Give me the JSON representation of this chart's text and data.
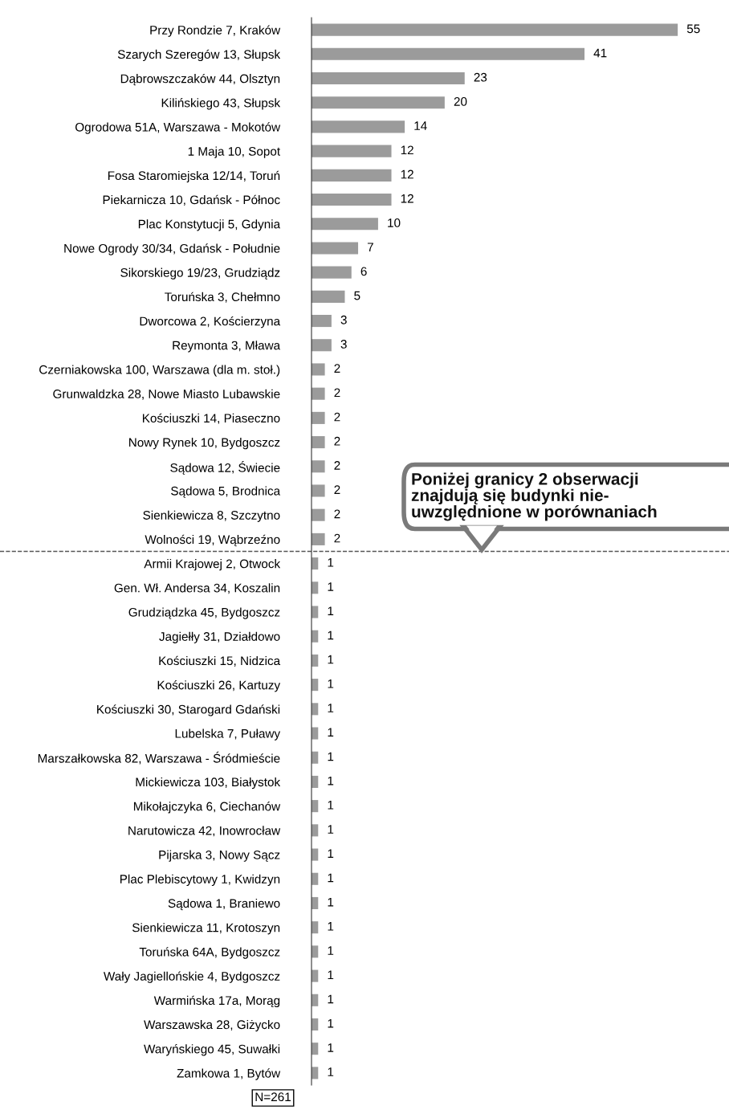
{
  "chart_data": {
    "type": "bar",
    "orientation": "horizontal",
    "data_labels": true,
    "grid": false,
    "categories": [
      "Przy Rondzie 7, Kraków",
      "Szarych Szeregów 13, Słupsk",
      "Dąbrowszczaków 44, Olsztyn",
      "Kilińskiego 43, Słupsk",
      "Ogrodowa 51A, Warszawa - Mokotów",
      "1 Maja 10, Sopot",
      "Fosa Staromiejska 12/14, Toruń",
      "Piekarnicza 10, Gdańsk - Północ",
      "Plac Konstytucji 5, Gdynia",
      "Nowe Ogrody 30/34, Gdańsk - Południe",
      "Sikorskiego 19/23, Grudziądz",
      "Toruńska 3, Chełmno",
      "Dworcowa 2, Kościerzyna",
      "Reymonta 3, Mława",
      "Czerniakowska 100, Warszawa (dla m. stoł.)",
      "Grunwaldzka 28, Nowe Miasto Lubawskie",
      "Kościuszki 14, Piaseczno",
      "Nowy Rynek 10, Bydgoszcz",
      "Sądowa 12, Świecie",
      "Sądowa 5, Brodnica",
      "Sienkiewicza 8, Szczytno",
      "Wolności 19, Wąbrzeźno",
      "Armii Krajowej 2, Otwock",
      "Gen. Wł. Andersa 34, Koszalin",
      "Grudziądzka 45, Bydgoszcz",
      "Jagiełły 31, Działdowo",
      "Kościuszki 15, Nidzica",
      "Kościuszki 26, Kartuzy",
      "Kościuszki 30, Starogard Gdański",
      "Lubelska 7, Puławy",
      "Marszałkowska 82, Warszawa - Śródmieście",
      "Mickiewicza 103, Białystok",
      "Mikołajczyka 6, Ciechanów",
      "Narutowicza 42, Inowrocław",
      "Pijarska 3, Nowy Sącz",
      "Plac Plebiscytowy 1, Kwidzyn",
      "Sądowa 1, Braniewo",
      "Sienkiewicza 11, Krotoszyn",
      "Toruńska 64A, Bydgoszcz",
      "Wały Jagiellońskie 4, Bydgoszcz",
      "Warmińska 17a, Morąg",
      "Warszawska 28, Giżycko",
      "Waryńskiego 45, Suwałki",
      "Zamkowa 1, Bytów"
    ],
    "series": [
      {
        "color": "#9b9b9b",
        "values": [
          55,
          41,
          23,
          20,
          14,
          12,
          12,
          12,
          10,
          7,
          6,
          5,
          3,
          3,
          2,
          2,
          2,
          2,
          2,
          2,
          2,
          2,
          1,
          1,
          1,
          1,
          1,
          1,
          1,
          1,
          1,
          1,
          1,
          1,
          1,
          1,
          1,
          1,
          1,
          1,
          1,
          1,
          1,
          1
        ]
      }
    ],
    "annotations": [
      "Poniżej granicy 2 obserwacji\nznajdują się budynki nie-\nuwzględnione w porównaniach",
      "N=261"
    ]
  }
}
